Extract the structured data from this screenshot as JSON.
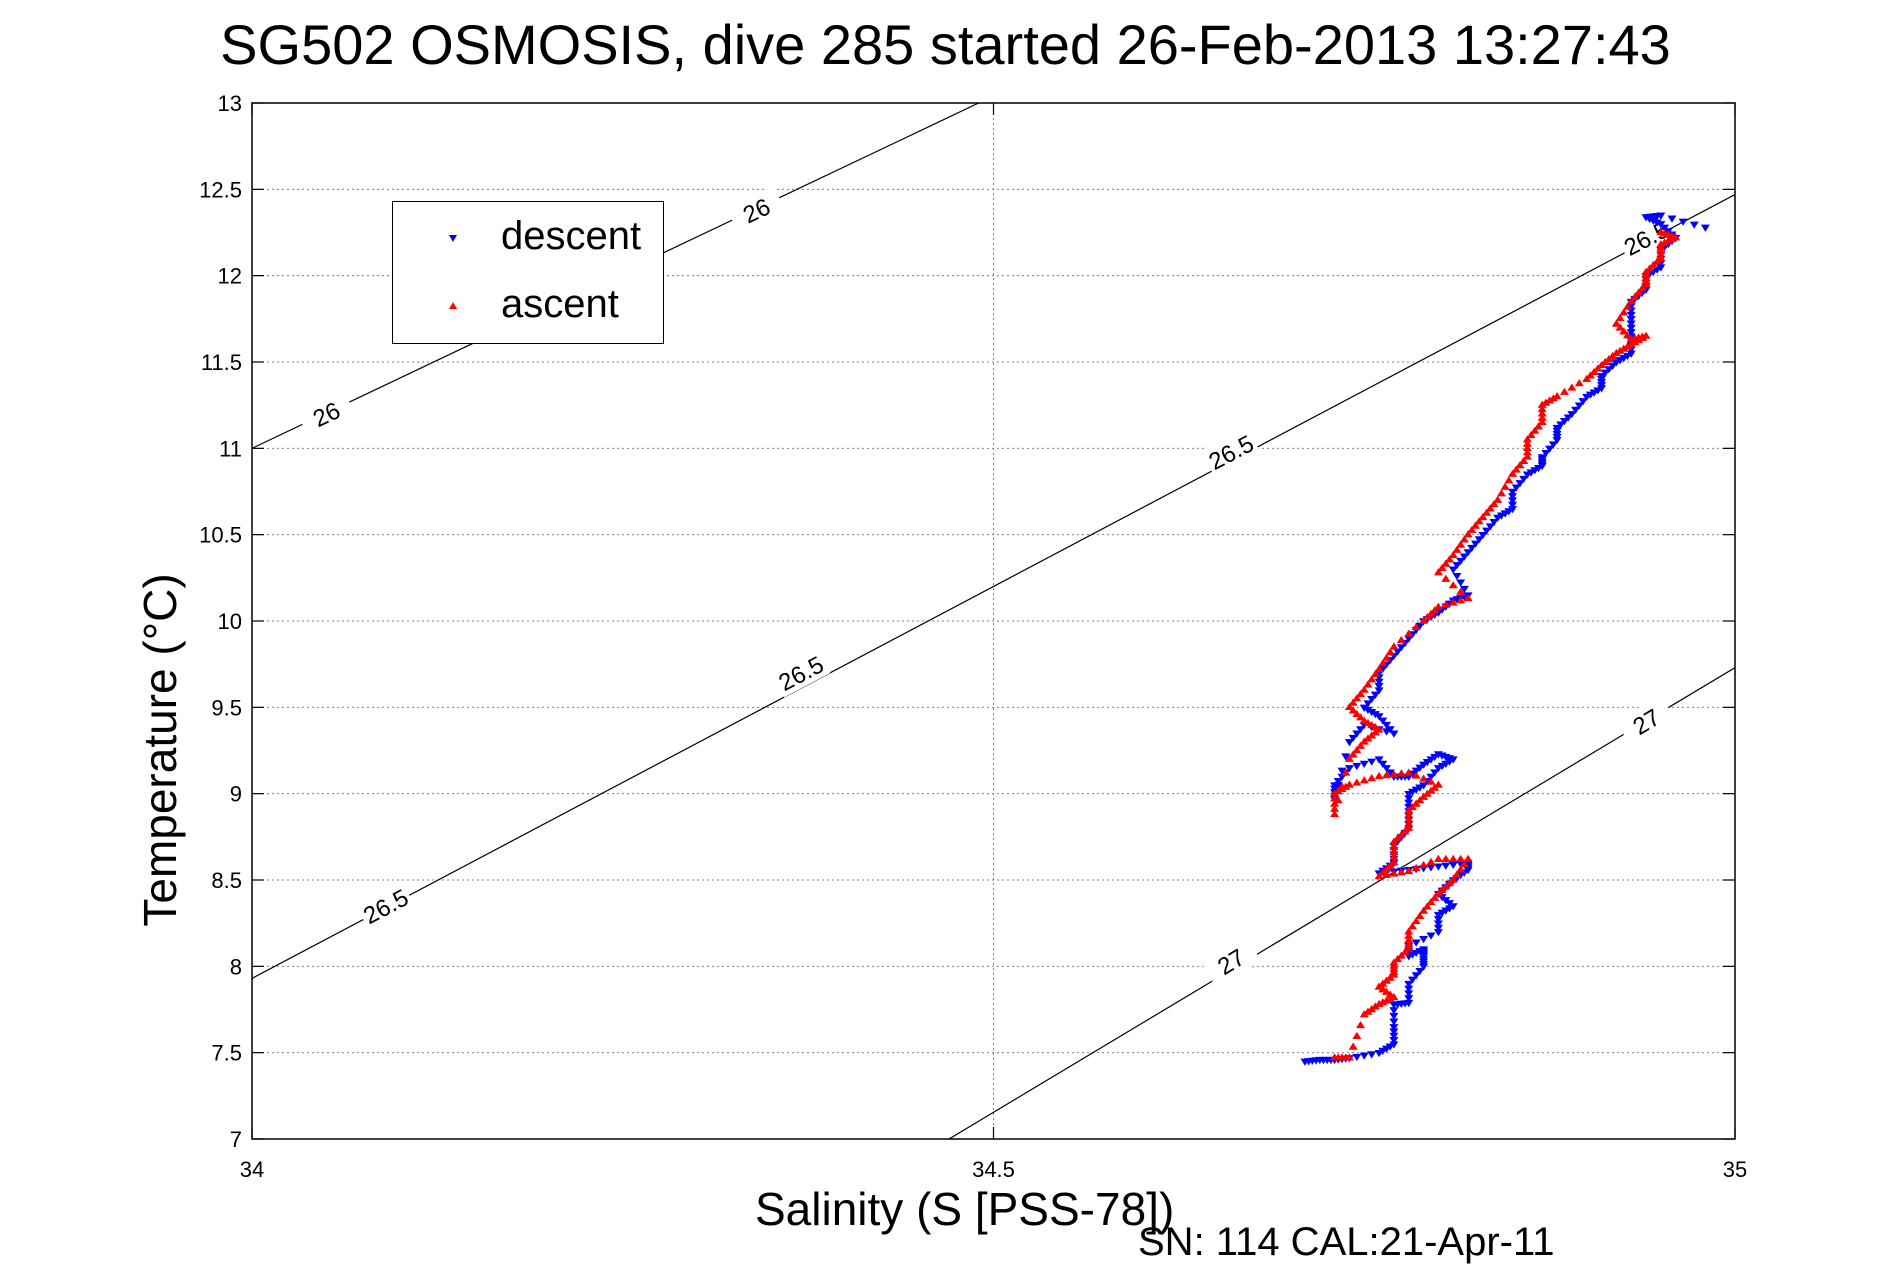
{
  "title": "SG502 OSMOSIS, dive 285 started 26-Feb-2013 13:27:43",
  "xlabel": "Salinity (S [PSS-78])",
  "ylabel": "Temperature (°C)",
  "caption": "SN: 114  CAL:21-Apr-11",
  "colors": {
    "descent": "#0000ff",
    "ascent": "#ff0000",
    "axis": "#000000",
    "grid": "#808080"
  },
  "chart_data": {
    "type": "scatter",
    "title": "SG502 OSMOSIS, dive 285 started 26-Feb-2013 13:27:43",
    "xlabel": "Salinity (S [PSS-78])",
    "ylabel": "Temperature (°C)",
    "xlim": [
      34,
      35
    ],
    "ylim": [
      7,
      13
    ],
    "xticks": [
      34,
      34.5,
      35
    ],
    "xtick_labels": [
      "34",
      "34.5",
      "35"
    ],
    "yticks": [
      7,
      7.5,
      8,
      8.5,
      9,
      9.5,
      10,
      10.5,
      11,
      11.5,
      12,
      12.5,
      13
    ],
    "ytick_labels": [
      "7",
      "7.5",
      "8",
      "8.5",
      "9",
      "9.5",
      "10",
      "10.5",
      "11",
      "11.5",
      "12",
      "12.5",
      "13"
    ],
    "grid": true,
    "legend": {
      "position": "top-left",
      "entries": [
        "descent",
        "ascent"
      ]
    },
    "contours": [
      {
        "level": "26",
        "points": [
          [
            34,
            11.0
          ],
          [
            34.49,
            13.0
          ]
        ],
        "labels": [
          [
            34.05,
            11.2
          ],
          [
            34.34,
            12.38
          ]
        ]
      },
      {
        "level": "26.5",
        "points": [
          [
            34,
            7.93
          ],
          [
            35,
            12.47
          ]
        ],
        "labels": [
          [
            34.09,
            8.35
          ],
          [
            34.37,
            9.7
          ],
          [
            34.66,
            10.98
          ],
          [
            34.94,
            12.22
          ]
        ]
      },
      {
        "level": "27",
        "points": [
          [
            34.47,
            7.0
          ],
          [
            35,
            9.73
          ]
        ],
        "labels": [
          [
            34.66,
            8.03
          ],
          [
            34.94,
            9.42
          ]
        ]
      }
    ],
    "series": [
      {
        "name": "descent",
        "marker": "triangle-down",
        "points": [
          [
            34.71,
            7.45
          ],
          [
            34.72,
            7.46
          ],
          [
            34.73,
            7.46
          ],
          [
            34.74,
            7.47
          ],
          [
            34.76,
            7.5
          ],
          [
            34.77,
            7.55
          ],
          [
            34.77,
            7.65
          ],
          [
            34.77,
            7.78
          ],
          [
            34.78,
            7.79
          ],
          [
            34.78,
            7.9
          ],
          [
            34.79,
            8.0
          ],
          [
            34.79,
            8.06
          ],
          [
            34.79,
            8.1
          ],
          [
            34.78,
            8.06
          ],
          [
            34.78,
            8.12
          ],
          [
            34.8,
            8.2
          ],
          [
            34.8,
            8.3
          ],
          [
            34.81,
            8.35
          ],
          [
            34.8,
            8.42
          ],
          [
            34.81,
            8.5
          ],
          [
            34.82,
            8.56
          ],
          [
            34.82,
            8.6
          ],
          [
            34.8,
            8.58
          ],
          [
            34.78,
            8.56
          ],
          [
            34.76,
            8.54
          ],
          [
            34.77,
            8.6
          ],
          [
            34.77,
            8.7
          ],
          [
            34.78,
            8.8
          ],
          [
            34.78,
            8.9
          ],
          [
            34.78,
            9.0
          ],
          [
            34.79,
            9.05
          ],
          [
            34.8,
            9.15
          ],
          [
            34.81,
            9.2
          ],
          [
            34.8,
            9.23
          ],
          [
            34.79,
            9.17
          ],
          [
            34.78,
            9.1
          ],
          [
            34.77,
            9.1
          ],
          [
            34.76,
            9.2
          ],
          [
            34.74,
            9.15
          ],
          [
            34.73,
            9.05
          ],
          [
            34.73,
            8.97
          ],
          [
            34.74,
            9.3
          ],
          [
            34.75,
            9.4
          ],
          [
            34.77,
            9.35
          ],
          [
            34.76,
            9.45
          ],
          [
            34.75,
            9.5
          ],
          [
            34.76,
            9.6
          ],
          [
            34.76,
            9.7
          ],
          [
            34.77,
            9.8
          ],
          [
            34.78,
            9.9
          ],
          [
            34.79,
            10.0
          ],
          [
            34.8,
            10.05
          ],
          [
            34.81,
            10.12
          ],
          [
            34.82,
            10.15
          ],
          [
            34.81,
            10.3
          ],
          [
            34.82,
            10.4
          ],
          [
            34.83,
            10.5
          ],
          [
            34.84,
            10.6
          ],
          [
            34.85,
            10.65
          ],
          [
            34.85,
            10.75
          ],
          [
            34.86,
            10.85
          ],
          [
            34.87,
            10.9
          ],
          [
            34.87,
            10.95
          ],
          [
            34.88,
            11.05
          ],
          [
            34.88,
            11.12
          ],
          [
            34.89,
            11.2
          ],
          [
            34.9,
            11.3
          ],
          [
            34.91,
            11.35
          ],
          [
            34.91,
            11.42
          ],
          [
            34.92,
            11.5
          ],
          [
            34.93,
            11.55
          ],
          [
            34.93,
            11.65
          ],
          [
            34.93,
            11.75
          ],
          [
            34.93,
            11.85
          ],
          [
            34.94,
            11.92
          ],
          [
            34.94,
            12.0
          ],
          [
            34.95,
            12.05
          ],
          [
            34.95,
            12.15
          ],
          [
            34.96,
            12.22
          ],
          [
            34.95,
            12.3
          ],
          [
            34.94,
            12.34
          ],
          [
            34.95,
            12.35
          ],
          [
            34.98,
            12.28
          ]
        ]
      },
      {
        "name": "ascent",
        "marker": "triangle-up",
        "points": [
          [
            34.73,
            7.47
          ],
          [
            34.74,
            7.47
          ],
          [
            34.75,
            7.72
          ],
          [
            34.76,
            7.78
          ],
          [
            34.77,
            7.82
          ],
          [
            34.76,
            7.88
          ],
          [
            34.77,
            7.95
          ],
          [
            34.77,
            8.02
          ],
          [
            34.78,
            8.1
          ],
          [
            34.78,
            8.2
          ],
          [
            34.79,
            8.32
          ],
          [
            34.8,
            8.42
          ],
          [
            34.81,
            8.5
          ],
          [
            34.82,
            8.62
          ],
          [
            34.8,
            8.62
          ],
          [
            34.78,
            8.55
          ],
          [
            34.76,
            8.52
          ],
          [
            34.77,
            8.6
          ],
          [
            34.77,
            8.72
          ],
          [
            34.78,
            8.8
          ],
          [
            34.78,
            8.9
          ],
          [
            34.79,
            8.98
          ],
          [
            34.8,
            9.05
          ],
          [
            34.78,
            9.12
          ],
          [
            34.76,
            9.1
          ],
          [
            34.74,
            9.05
          ],
          [
            34.73,
            9.0
          ],
          [
            34.73,
            8.88
          ],
          [
            34.74,
            9.2
          ],
          [
            34.75,
            9.3
          ],
          [
            34.76,
            9.37
          ],
          [
            34.75,
            9.42
          ],
          [
            34.74,
            9.5
          ],
          [
            34.75,
            9.6
          ],
          [
            34.76,
            9.72
          ],
          [
            34.77,
            9.85
          ],
          [
            34.79,
            10.0
          ],
          [
            34.8,
            10.08
          ],
          [
            34.82,
            10.13
          ],
          [
            34.8,
            10.28
          ],
          [
            34.81,
            10.38
          ],
          [
            34.82,
            10.5
          ],
          [
            34.83,
            10.6
          ],
          [
            34.84,
            10.7
          ],
          [
            34.85,
            10.85
          ],
          [
            34.86,
            10.95
          ],
          [
            34.86,
            11.05
          ],
          [
            34.87,
            11.15
          ],
          [
            34.87,
            11.25
          ],
          [
            34.88,
            11.3
          ],
          [
            34.9,
            11.4
          ],
          [
            34.91,
            11.48
          ],
          [
            34.92,
            11.55
          ],
          [
            34.93,
            11.6
          ],
          [
            34.94,
            11.65
          ],
          [
            34.93,
            11.63
          ],
          [
            34.92,
            11.72
          ],
          [
            34.93,
            11.85
          ],
          [
            34.94,
            11.95
          ],
          [
            34.94,
            12.02
          ],
          [
            34.95,
            12.1
          ],
          [
            34.95,
            12.18
          ],
          [
            34.96,
            12.22
          ],
          [
            34.95,
            12.25
          ]
        ]
      }
    ]
  }
}
